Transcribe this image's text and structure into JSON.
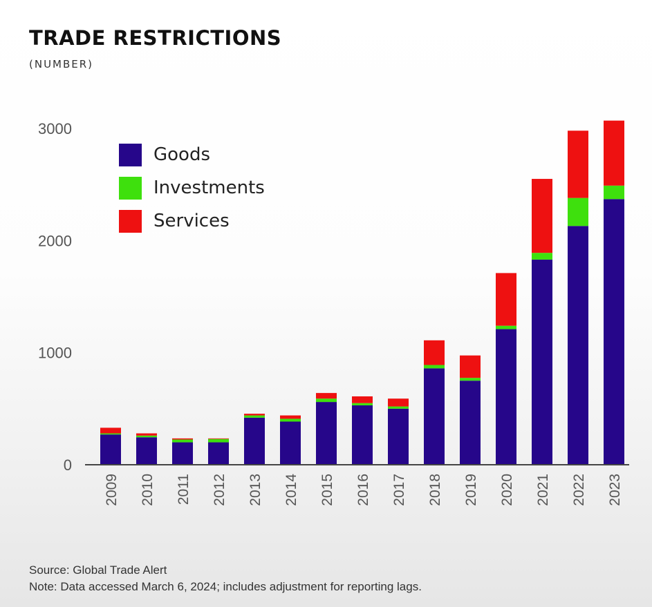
{
  "header": {
    "title": "TRADE RESTRICTIONS",
    "subtitle": "(NUMBER)"
  },
  "footer": {
    "source": "Source: Global Trade Alert",
    "note": "Note: Data accessed March 6, 2024; includes adjustment for reporting lags."
  },
  "colors": {
    "goods": "#26068a",
    "investments": "#3ee00d",
    "services": "#ee1111",
    "axis": "#444444"
  },
  "chart_data": {
    "type": "bar",
    "stacked": true,
    "title": "TRADE RESTRICTIONS",
    "subtitle": "(NUMBER)",
    "xlabel": "",
    "ylabel": "",
    "ylim": [
      0,
      3000
    ],
    "yticks": [
      0,
      1000,
      2000,
      3000
    ],
    "grid": false,
    "legend_position": "top-left",
    "categories": [
      "2009",
      "2010",
      "2011",
      "2012",
      "2013",
      "2014",
      "2015",
      "2016",
      "2017",
      "2018",
      "2019",
      "2020",
      "2021",
      "2022",
      "2023"
    ],
    "series": [
      {
        "name": "Goods",
        "color": "#26068a",
        "values": [
          270,
          245,
          200,
          200,
          420,
          385,
          560,
          530,
          500,
          860,
          750,
          1210,
          1830,
          2130,
          2370
        ]
      },
      {
        "name": "Investments",
        "color": "#3ee00d",
        "values": [
          10,
          15,
          25,
          30,
          20,
          25,
          30,
          20,
          20,
          30,
          25,
          30,
          60,
          250,
          120
        ]
      },
      {
        "name": "Services",
        "color": "#ee1111",
        "values": [
          50,
          20,
          10,
          5,
          15,
          30,
          50,
          60,
          70,
          220,
          200,
          470,
          660,
          600,
          580
        ]
      }
    ]
  }
}
